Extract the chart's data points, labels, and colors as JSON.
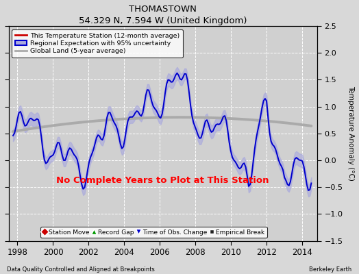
{
  "title": "THOMASTOWN",
  "subtitle": "54.329 N, 7.594 W (United Kingdom)",
  "ylabel": "Temperature Anomaly (°C)",
  "xlabel_left": "Data Quality Controlled and Aligned at Breakpoints",
  "xlabel_right": "Berkeley Earth",
  "no_data_text": "No Complete Years to Plot at This Station",
  "xlim": [
    1997.5,
    2014.83
  ],
  "ylim": [
    -1.5,
    2.5
  ],
  "yticks": [
    -1.5,
    -1.0,
    -0.5,
    0.0,
    0.5,
    1.0,
    1.5,
    2.0,
    2.5
  ],
  "xticks": [
    1998,
    2000,
    2002,
    2004,
    2006,
    2008,
    2010,
    2012,
    2014
  ],
  "background_color": "#d8d8d8",
  "plot_bg_color": "#d0d0d0",
  "grid_color": "#ffffff",
  "blue_line_color": "#0000cc",
  "blue_fill_color": "#aaaadd",
  "red_line_color": "#cc0000",
  "gray_line_color": "#aaaaaa",
  "legend1_labels": [
    "This Temperature Station (12-month average)",
    "Regional Expectation with 95% uncertainty",
    "Global Land (5-year average)"
  ],
  "legend2_labels": [
    "Station Move",
    "Record Gap",
    "Time of Obs. Change",
    "Empirical Break"
  ],
  "legend2_colors": [
    "#cc0000",
    "#009900",
    "#0000cc",
    "#222222"
  ],
  "legend2_markers": [
    "D",
    "^",
    "v",
    "s"
  ]
}
